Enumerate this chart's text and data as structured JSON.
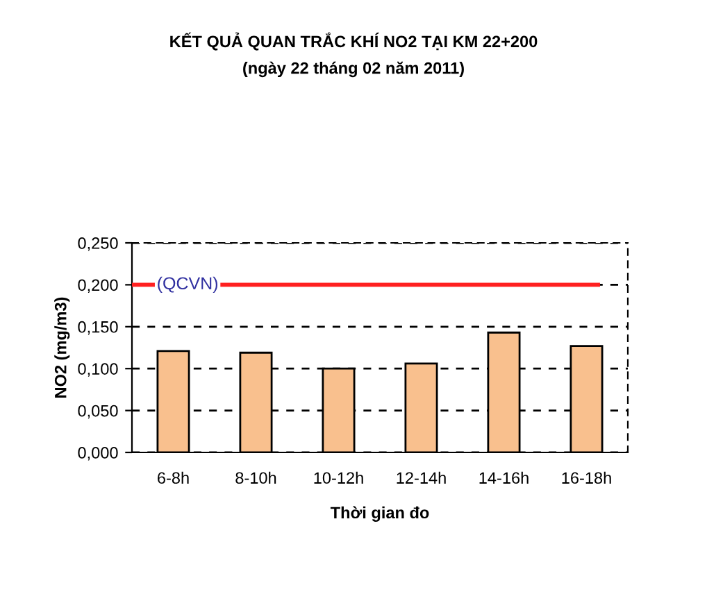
{
  "chart_data": {
    "type": "bar",
    "title": "KẾT QUẢ QUAN TRẮC KHÍ NO2 TẠI KM 22+200",
    "subtitle": "(ngày 22 tháng 02 năm 2011)",
    "xlabel": "Thời gian đo",
    "ylabel": "NO2 (mg/m3)",
    "categories": [
      "6-8h",
      "8-10h",
      "10-12h",
      "12-14h",
      "14-16h",
      "16-18h"
    ],
    "values": [
      0.121,
      0.119,
      0.1,
      0.106,
      0.143,
      0.127
    ],
    "color": "#f9c08e",
    "ylim": [
      0,
      0.25
    ],
    "yticks": [
      {
        "value": 0,
        "label": "0,000"
      },
      {
        "value": 0.05,
        "label": "0,050"
      },
      {
        "value": 0.1,
        "label": "0,100"
      },
      {
        "value": 0.15,
        "label": "0,150"
      },
      {
        "value": 0.2,
        "label": "0,200"
      },
      {
        "value": 0.25,
        "label": "0,250"
      }
    ],
    "ref_lines": [
      {
        "axis": "y",
        "value": 0.2,
        "label": "(QCVN)",
        "color": "#ff2020",
        "line_style": "solid"
      }
    ],
    "grid": "y",
    "legend": false
  }
}
